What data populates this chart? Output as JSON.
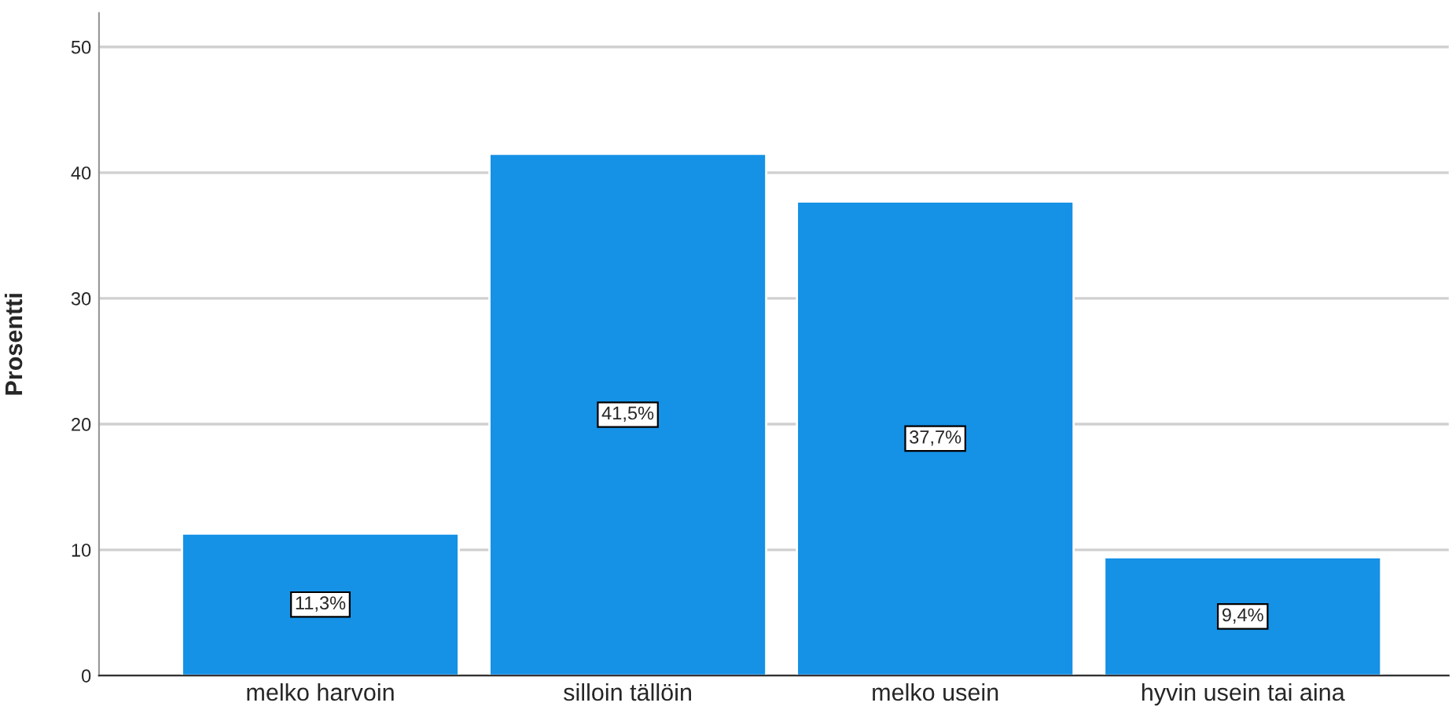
{
  "chart_data": {
    "type": "bar",
    "ylabel": "Prosentti",
    "categories": [
      "melko harvoin",
      "silloin tällöin",
      "melko usein",
      "hyvin usein tai aina"
    ],
    "values": [
      11.3,
      41.5,
      37.7,
      9.4
    ],
    "value_labels": [
      "11,3%",
      "41,5%",
      "37,7%",
      "9,4%"
    ],
    "color": "#1591e6",
    "ylim": [
      0,
      52.7
    ],
    "yticks": [
      0,
      10,
      20,
      30,
      40,
      50
    ],
    "grid": "y",
    "legend": false
  }
}
